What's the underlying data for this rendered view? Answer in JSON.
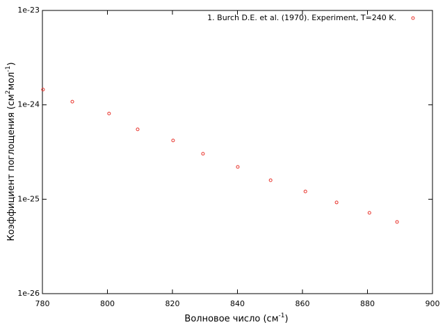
{
  "chart_data": {
    "type": "scatter",
    "x_label": {
      "text": "Волновое число (см",
      "sup": "-1",
      "end": ")"
    },
    "y_label": {
      "text": "Коэффициент поглощения (см",
      "sup": "2",
      "mid": "мол",
      "sup2": "-1",
      "end": ")"
    },
    "xlim": [
      780,
      900
    ],
    "xticks": [
      780,
      800,
      820,
      840,
      860,
      880,
      900
    ],
    "ylim": [
      1e-26,
      1e-23
    ],
    "yticks": [
      1e-26,
      1e-25,
      1e-24,
      1e-23
    ],
    "log_y": true,
    "grid": false,
    "legend": "top-right",
    "series": [
      {
        "name": "1. Burch D.E. et al. (1970). Experiment, T=240 K.",
        "color": "#e8322a",
        "x": [
          780.2,
          789.2,
          800.5,
          809.3,
          820.2,
          829.4,
          840.1,
          850.2,
          860.9,
          870.5,
          880.6,
          889.1
        ],
        "values": [
          1.45e-24,
          1.08e-24,
          8.1e-25,
          5.5e-25,
          4.19e-25,
          3.03e-25,
          2.2e-25,
          1.59e-25,
          1.21e-25,
          9.25e-26,
          7.18e-26,
          5.75e-26
        ]
      }
    ]
  }
}
